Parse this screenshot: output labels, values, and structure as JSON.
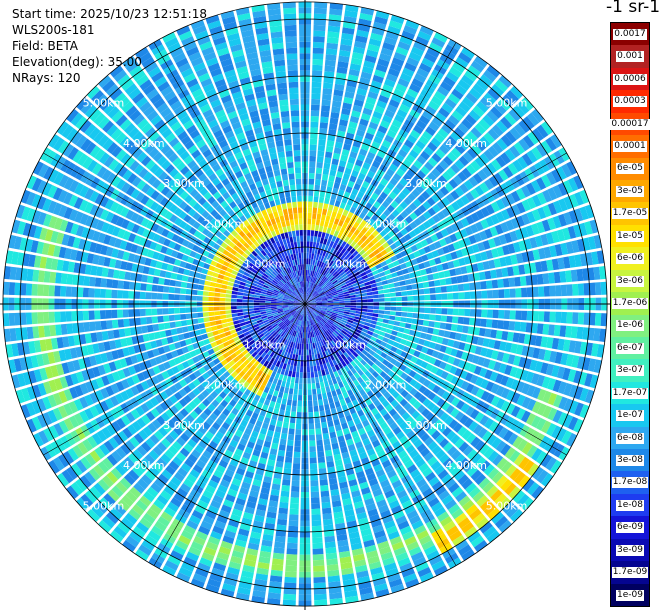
{
  "header": {
    "start_time": "Start time: 2025/10/23 12:51:18",
    "instrument": "WLS200s-181",
    "field": "Field: BETA",
    "elevation": "Elevation(deg): 35.00",
    "nrays": "NRays: 120"
  },
  "colorbar": {
    "title": "-1 sr-1",
    "labels": [
      "0.0017",
      "0.001",
      "0.0006",
      "0.0003",
      "0.00017",
      "0.0001",
      "6e-05",
      "3e-05",
      "1.7e-05",
      "1e-05",
      "6e-06",
      "3e-06",
      "1.7e-06",
      "1e-06",
      "6e-07",
      "3e-07",
      "1.7e-07",
      "1e-07",
      "6e-08",
      "3e-08",
      "1.7e-08",
      "1e-08",
      "6e-09",
      "3e-09",
      "1.7e-09",
      "1e-09"
    ],
    "colors": [
      "#8b0000",
      "#b22222",
      "#dc1414",
      "#ff2a00",
      "#ff4a00",
      "#ff6e00",
      "#ff8c00",
      "#ffa800",
      "#ffc400",
      "#ffe000",
      "#f0f020",
      "#c8f540",
      "#a0f050",
      "#80f080",
      "#60f0a0",
      "#40f0c0",
      "#20e8e0",
      "#18c8f0",
      "#2ea8f0",
      "#1e88e8",
      "#1e60f0",
      "#1e3cf0",
      "#1414d8",
      "#0a0ab4",
      "#050590",
      "#000060"
    ]
  },
  "chart_data": {
    "type": "heatmap",
    "projection": "polar PPI",
    "field": "BETA",
    "elevation_deg": 35.0,
    "n_rays": 120,
    "max_range_km": 5.3,
    "range_rings_km": [
      1,
      2,
      3,
      4,
      5
    ],
    "ring_labels": [
      "1.00km",
      "2.00km",
      "3.00km",
      "4.00km",
      "5.00km"
    ],
    "scale": "log",
    "vmin": 1e-09,
    "vmax": 0.0017,
    "background_level": 8e-08,
    "features": [
      {
        "description": "high backscatter arc",
        "start_azimuth_deg": 205,
        "end_azimuth_deg": 60,
        "range_km": 1.55,
        "level": 1.5e-05
      },
      {
        "description": "outer band",
        "start_azimuth_deg": 110,
        "end_azimuth_deg": 290,
        "range_km": 4.6,
        "level": 1.2e-06
      },
      {
        "description": "outer band highlight",
        "start_azimuth_deg": 125,
        "end_azimuth_deg": 150,
        "range_km": 4.8,
        "level": 1e-05
      }
    ]
  }
}
